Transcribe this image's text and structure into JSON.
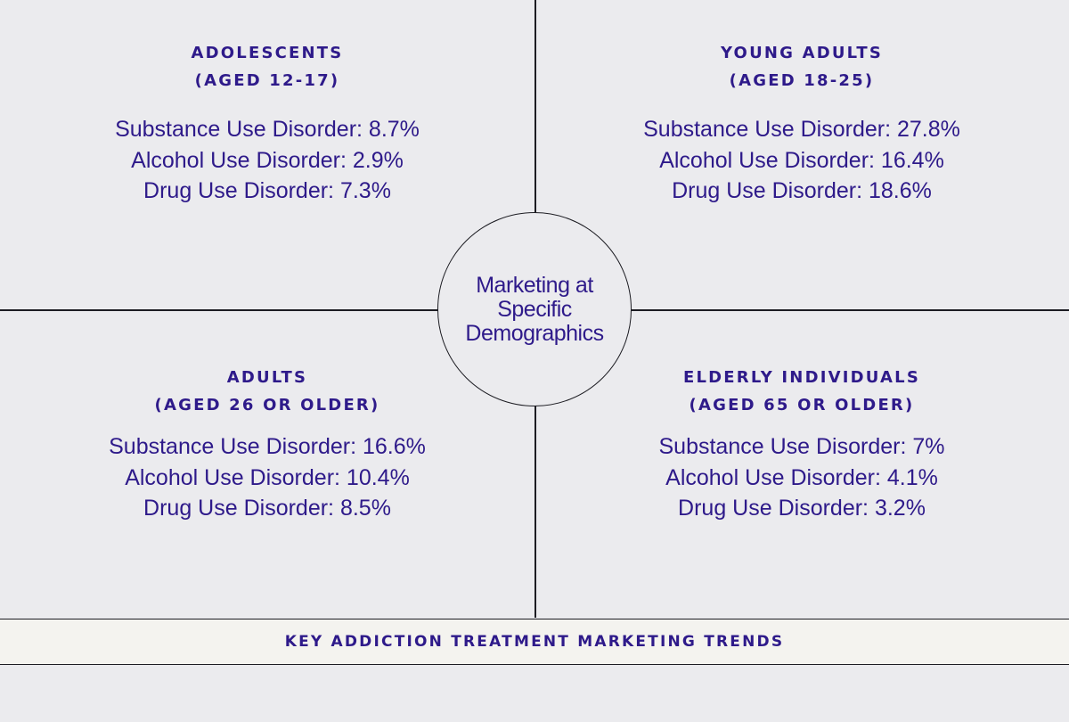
{
  "center": {
    "label": "Marketing at Specific Demographics"
  },
  "quadrants": {
    "top_left": {
      "title": "ADOLESCENTS",
      "subtitle": "(AGED 12-17)",
      "stats": [
        "Substance Use Disorder: 8.7%",
        "Alcohol Use Disorder: 2.9%",
        "Drug Use Disorder: 7.3%"
      ]
    },
    "top_right": {
      "title": "YOUNG ADULTS",
      "subtitle": "(AGED 18-25)",
      "stats": [
        "Substance Use Disorder: 27.8%",
        "Alcohol Use Disorder: 16.4%",
        "Drug Use Disorder: 18.6%"
      ]
    },
    "bottom_left": {
      "title": "ADULTS",
      "subtitle": "(AGED 26 OR OLDER)",
      "stats": [
        "Substance Use Disorder: 16.6%",
        "Alcohol Use Disorder: 10.4%",
        "Drug Use Disorder: 8.5%"
      ]
    },
    "bottom_right": {
      "title": "ELDERLY INDIVIDUALS",
      "subtitle": "(AGED 65 OR OLDER)",
      "stats": [
        "Substance Use Disorder: 7%",
        "Alcohol Use Disorder: 4.1%",
        "Drug Use Disorder: 3.2%"
      ]
    }
  },
  "footer": {
    "label": "KEY ADDICTION TREATMENT MARKETING TRENDS"
  },
  "colors": {
    "text": "#2e1a8a",
    "background": "#ebebee",
    "footer_background": "#f4f3ef",
    "lines": "#1c1c22"
  }
}
